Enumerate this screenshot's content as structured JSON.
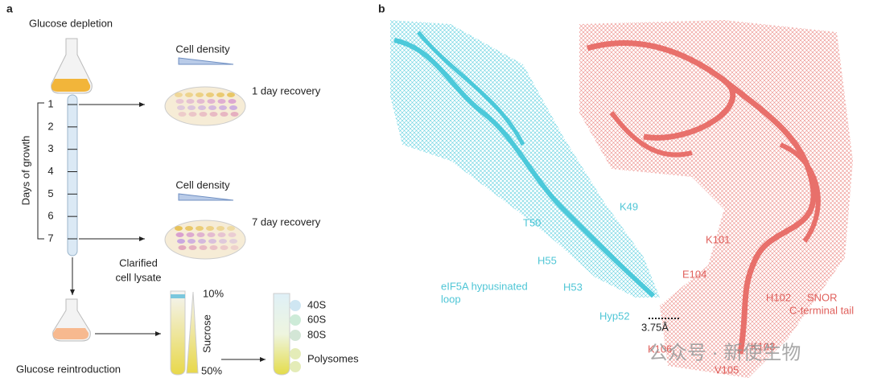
{
  "panel_a": {
    "label": "a",
    "start_title": "Glucose depletion",
    "density_top": "Cell density",
    "density_bottom": "Cell density",
    "recovery_top": "1 day recovery",
    "recovery_bottom": "7 day recovery",
    "axis_label": "Days of growth",
    "days": [
      1,
      2,
      3,
      4,
      5,
      6,
      7
    ],
    "lysate": [
      "Clarified",
      "cell lysate"
    ],
    "gradient_top": "10%",
    "gradient_bottom": "50%",
    "gradient_label": "Sucrose",
    "fractions": [
      "40S",
      "60S",
      "80S",
      "Polysomes"
    ],
    "end_title": "Glucose reintroduction"
  },
  "panel_b": {
    "label": "b",
    "cyan_residues": [
      "K49",
      "T50",
      "H55",
      "H53",
      "Hyp52"
    ],
    "distance": "3.75Å",
    "cyan_caption": [
      "eIF5A hypusinated",
      "loop"
    ],
    "red_residues": [
      "K101",
      "E104",
      "H102",
      "K106",
      "V105",
      "K103"
    ],
    "red_caption": [
      "SNOR",
      "C-terminal tail"
    ],
    "watermark": "公众号 · 新使生物"
  }
}
